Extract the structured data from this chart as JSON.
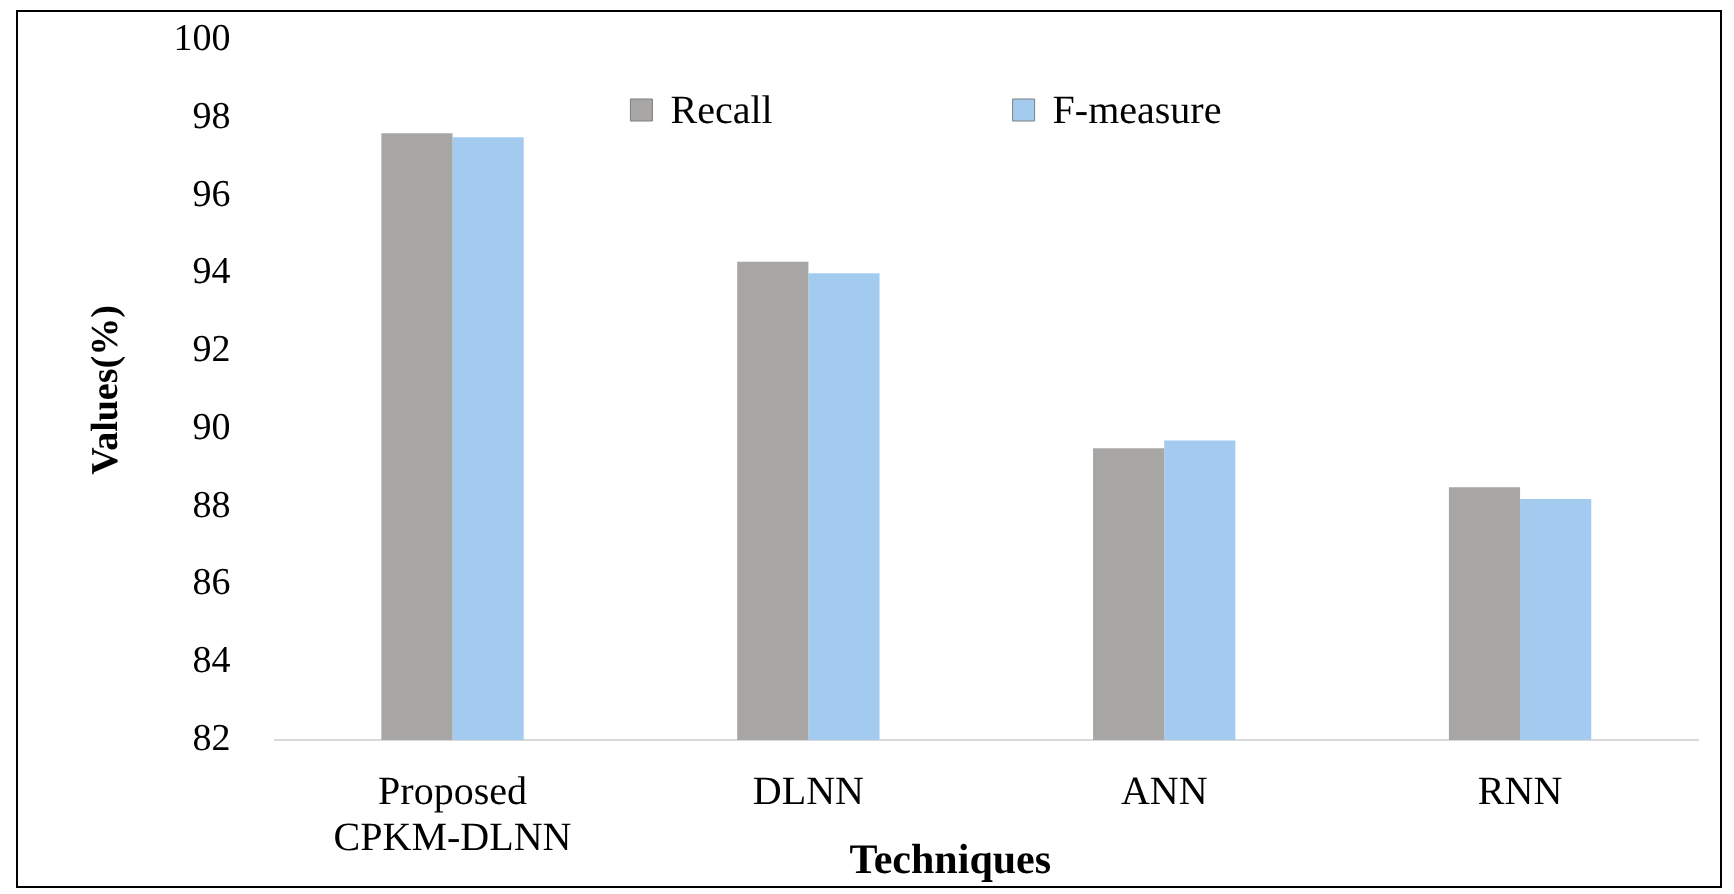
{
  "chart_data": {
    "type": "bar",
    "xlabel": "Techniques",
    "ylabel": "Values(%)",
    "categories": [
      "Proposed CPKM-DLNN",
      "DLNN",
      "ANN",
      "RNN"
    ],
    "series": [
      {
        "name": "Recall",
        "color": "#a8a5a5",
        "values": [
          97.6,
          94.3,
          89.5,
          88.5
        ]
      },
      {
        "name": "F-measure",
        "color": "#a3cbf0",
        "values": [
          97.5,
          94.0,
          89.7,
          88.2
        ]
      }
    ],
    "ylim": [
      82,
      100
    ],
    "yticks": [
      82,
      84,
      86,
      88,
      90,
      92,
      94,
      96,
      98,
      100
    ],
    "grid": false,
    "legend": "top"
  }
}
